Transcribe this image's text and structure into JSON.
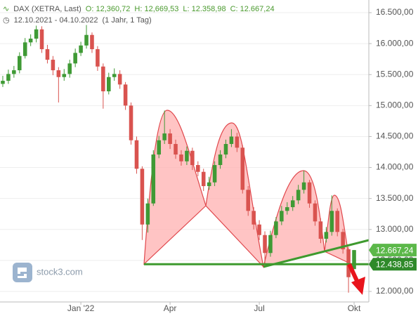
{
  "watermark": "stock3.com",
  "chart_data": {
    "type": "candlestick",
    "instrument": "DAX (XETRA, Last)",
    "ohlc_text": [
      "O: 12,360,72",
      "H: 12,669,53",
      "L: 12.358,98",
      "C: 12.667,24"
    ],
    "date_range": "12.10.2021 - 04.10.2022",
    "period": "(1 Jahr, 1 Tag)",
    "up_color": "#3f9a35",
    "down_color": "#d9534f",
    "categories": [
      null,
      null,
      null,
      null,
      null,
      null,
      null,
      null,
      null,
      null,
      null,
      null,
      null,
      null,
      "Jan '22",
      null,
      null,
      null,
      null,
      null,
      null,
      null,
      null,
      null,
      null,
      null,
      null,
      null,
      null,
      null,
      "Apr",
      null,
      null,
      null,
      null,
      null,
      null,
      null,
      null,
      null,
      null,
      null,
      null,
      null,
      null,
      null,
      "Jul",
      null,
      null,
      null,
      null,
      null,
      null,
      null,
      null,
      null,
      null,
      null,
      null,
      null,
      null,
      null,
      null,
      "Okt"
    ],
    "open": [
      15350,
      15400,
      15510,
      15570,
      15800,
      16020,
      16080,
      16230,
      15910,
      15740,
      15570,
      15460,
      15510,
      15680,
      15850,
      15970,
      16140,
      15910,
      15630,
      15230,
      15460,
      15510,
      15340,
      15000,
      14440,
      13980,
      13080,
      13420,
      14210,
      14440,
      14550,
      14380,
      14210,
      14100,
      14270,
      14040,
      13930,
      13700,
      13760,
      14040,
      14210,
      14380,
      14500,
      14320,
      13640,
      13300,
      13080,
      12910,
      12620,
      12910,
      13130,
      13300,
      13360,
      13470,
      13640,
      13760,
      13420,
      13130,
      12850,
      12960,
      13300,
      12960,
      12680,
      12360.72
    ],
    "high": [
      15480,
      15580,
      15640,
      15860,
      16090,
      16150,
      16290,
      16280,
      15980,
      15800,
      15620,
      15590,
      15740,
      15920,
      16030,
      16300,
      16180,
      15960,
      15680,
      15530,
      15600,
      15570,
      15380,
      15050,
      14500,
      14020,
      13500,
      14280,
      14510,
      14920,
      14620,
      14450,
      14280,
      14340,
      14320,
      14100,
      13980,
      13850,
      14100,
      14280,
      14450,
      14620,
      14560,
      14360,
      13700,
      13360,
      13150,
      12970,
      12980,
      13200,
      13380,
      13440,
      13540,
      13720,
      13950,
      13800,
      13470,
      13180,
      13040,
      13550,
      13340,
      13010,
      12720,
      12669.53
    ],
    "low": [
      15300,
      15350,
      15450,
      15520,
      15760,
      15960,
      16020,
      15850,
      15680,
      15490,
      15050,
      15400,
      15450,
      15620,
      15800,
      15920,
      15850,
      15560,
      14950,
      15180,
      15400,
      15270,
      14930,
      14370,
      13900,
      12830,
      12950,
      13380,
      14150,
      14380,
      14300,
      14140,
      14030,
      14040,
      13960,
      13860,
      13620,
      13640,
      13700,
      13980,
      14150,
      14330,
      14250,
      13580,
      13220,
      13000,
      12830,
      12440,
      12560,
      12860,
      13070,
      13240,
      13300,
      13410,
      13580,
      13350,
      13060,
      12780,
      12790,
      12900,
      12890,
      12610,
      11980,
      12358.98
    ],
    "close": [
      15400,
      15510,
      15570,
      15800,
      16020,
      16080,
      16230,
      15910,
      15740,
      15570,
      15460,
      15510,
      15680,
      15850,
      15970,
      16140,
      15910,
      15630,
      15230,
      15460,
      15510,
      15340,
      15000,
      14440,
      13980,
      13080,
      13420,
      14210,
      14440,
      14550,
      14380,
      14210,
      14100,
      14270,
      14040,
      13930,
      13700,
      13760,
      14040,
      14210,
      14380,
      14500,
      14320,
      13640,
      13300,
      13080,
      12910,
      12620,
      12910,
      13130,
      13300,
      13360,
      13470,
      13640,
      13760,
      13420,
      13130,
      12850,
      12960,
      13300,
      12960,
      12680,
      12230,
      12667.24
    ],
    "ylim": [
      11830,
      16704
    ],
    "yticks": [
      {
        "value": 12000,
        "label": "12.000,00"
      },
      {
        "value": 12500,
        "label": "12.500,00"
      },
      {
        "value": 13000,
        "label": "13.000,00"
      },
      {
        "value": 13500,
        "label": "13.500,00"
      },
      {
        "value": 14000,
        "label": "14.000,00"
      },
      {
        "value": 14500,
        "label": "14.500,00"
      },
      {
        "value": 15000,
        "label": "15.000,00"
      },
      {
        "value": 15500,
        "label": "15.500,00"
      },
      {
        "value": 16000,
        "label": "16.000,00"
      },
      {
        "value": 16500,
        "label": "16.500,00"
      }
    ],
    "price_labels": [
      {
        "value": 12667.24,
        "label": "12.667,24",
        "color": "#5cb84a"
      },
      {
        "value": 12438.85,
        "label": "12.438,85",
        "color": "#2f8a2a"
      }
    ],
    "neckline_color": "#3e9a2e"
  }
}
